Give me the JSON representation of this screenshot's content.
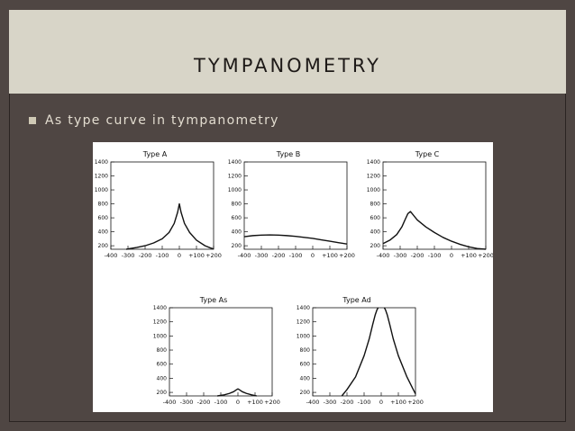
{
  "slide": {
    "title": "TYMPANOMETRY",
    "bullet": "As type curve in tympanometry",
    "colors": {
      "background": "#4f4643",
      "title_band": "#d8d5c8",
      "title_text": "#1e1a18",
      "bullet_text": "#e3ddd0",
      "bullet_marker": "#cfc9b5"
    },
    "bullet_icon": "square-bullet-icon"
  },
  "chart_data": [
    {
      "type": "line",
      "title": "Type A",
      "x_ticks": [
        "-400",
        "-300",
        "-200",
        "-100",
        "0",
        "+100",
        "+200"
      ],
      "y_ticks": [
        "200",
        "400",
        "600",
        "800",
        "1000",
        "1200",
        "1400"
      ],
      "xlim": [
        -400,
        200
      ],
      "ylim": [
        150,
        1400
      ],
      "x": [
        -310,
        -250,
        -200,
        -150,
        -100,
        -60,
        -30,
        -10,
        0,
        10,
        30,
        60,
        100,
        150,
        180,
        200
      ],
      "y": [
        150,
        175,
        200,
        240,
        300,
        390,
        520,
        680,
        800,
        680,
        520,
        390,
        280,
        200,
        170,
        155
      ]
    },
    {
      "type": "line",
      "title": "Type B",
      "x_ticks": [
        "-400",
        "-300",
        "-200",
        "-100",
        "0",
        "+100",
        "+200"
      ],
      "y_ticks": [
        "200",
        "400",
        "600",
        "800",
        "1000",
        "1200",
        "1400"
      ],
      "xlim": [
        -400,
        200
      ],
      "ylim": [
        150,
        1400
      ],
      "x": [
        -400,
        -350,
        -300,
        -250,
        -200,
        -150,
        -100,
        -50,
        0,
        50,
        100,
        150,
        200
      ],
      "y": [
        330,
        345,
        352,
        355,
        352,
        345,
        335,
        320,
        305,
        285,
        265,
        245,
        225
      ]
    },
    {
      "type": "line",
      "title": "Type C",
      "x_ticks": [
        "-400",
        "-300",
        "-200",
        "-100",
        "0",
        "+100",
        "+200"
      ],
      "y_ticks": [
        "200",
        "400",
        "600",
        "800",
        "1000",
        "1200",
        "1400"
      ],
      "xlim": [
        -400,
        200
      ],
      "ylim": [
        150,
        1400
      ],
      "x": [
        -400,
        -360,
        -320,
        -290,
        -270,
        -255,
        -240,
        -200,
        -150,
        -100,
        -50,
        0,
        50,
        100,
        150,
        200
      ],
      "y": [
        230,
        280,
        360,
        470,
        580,
        660,
        690,
        570,
        470,
        390,
        320,
        265,
        220,
        185,
        160,
        150
      ]
    },
    {
      "type": "line",
      "title": "Type As",
      "x_ticks": [
        "-400",
        "-300",
        "-200",
        "-100",
        "0",
        "+100",
        "+200"
      ],
      "y_ticks": [
        "200",
        "400",
        "600",
        "800",
        "1000",
        "1200",
        "1400"
      ],
      "xlim": [
        -400,
        200
      ],
      "ylim": [
        150,
        1400
      ],
      "x": [
        -120,
        -80,
        -50,
        -25,
        -10,
        0,
        10,
        25,
        50,
        80,
        110
      ],
      "y": [
        150,
        165,
        185,
        210,
        235,
        250,
        235,
        210,
        185,
        165,
        150
      ]
    },
    {
      "type": "line",
      "title": "Type Ad",
      "x_ticks": [
        "-400",
        "-300",
        "-200",
        "-100",
        "0",
        "+100",
        "+200"
      ],
      "y_ticks": [
        "200",
        "400",
        "600",
        "800",
        "1000",
        "1200",
        "1400"
      ],
      "xlim": [
        -400,
        200
      ],
      "ylim": [
        150,
        1400
      ],
      "series": [
        {
          "x": [
            -230,
            -200,
            -150,
            -100,
            -70,
            -50,
            -35,
            -25,
            -18
          ],
          "y": [
            150,
            240,
            420,
            720,
            960,
            1160,
            1300,
            1370,
            1400
          ]
        },
        {
          "x": [
            18,
            25,
            35,
            50,
            70,
            100,
            150,
            185,
            200
          ],
          "y": [
            1400,
            1370,
            1300,
            1160,
            960,
            720,
            420,
            250,
            180
          ]
        }
      ]
    }
  ]
}
